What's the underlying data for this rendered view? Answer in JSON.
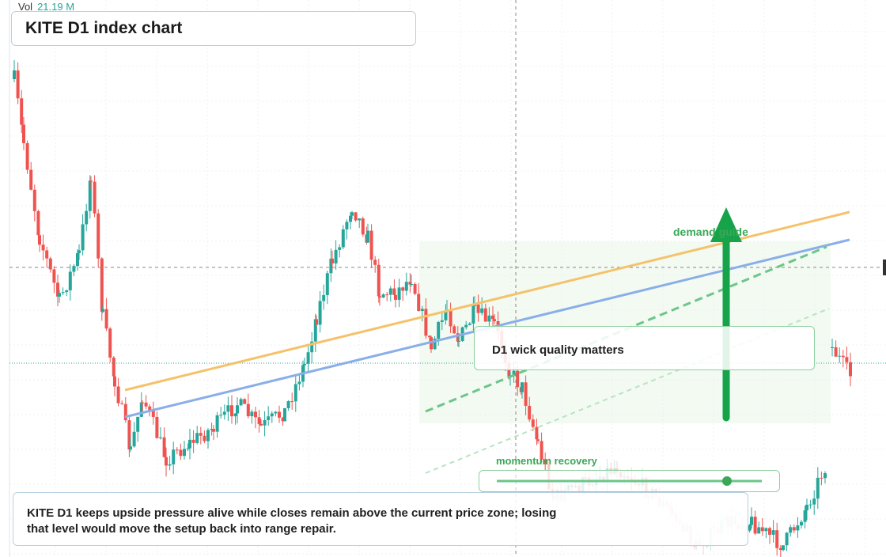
{
  "header": {
    "vol_label": "Vol",
    "vol_value": "21.19 M",
    "title": "KITE D1 index chart"
  },
  "annotations": {
    "guide": "demand guide",
    "callout": "D1 wick quality matters",
    "slider": "momentum recovery"
  },
  "note": "KITE D1 keeps upside pressure alive while closes remain above the current price zone; losing that level would move the setup back into range repair."
}
